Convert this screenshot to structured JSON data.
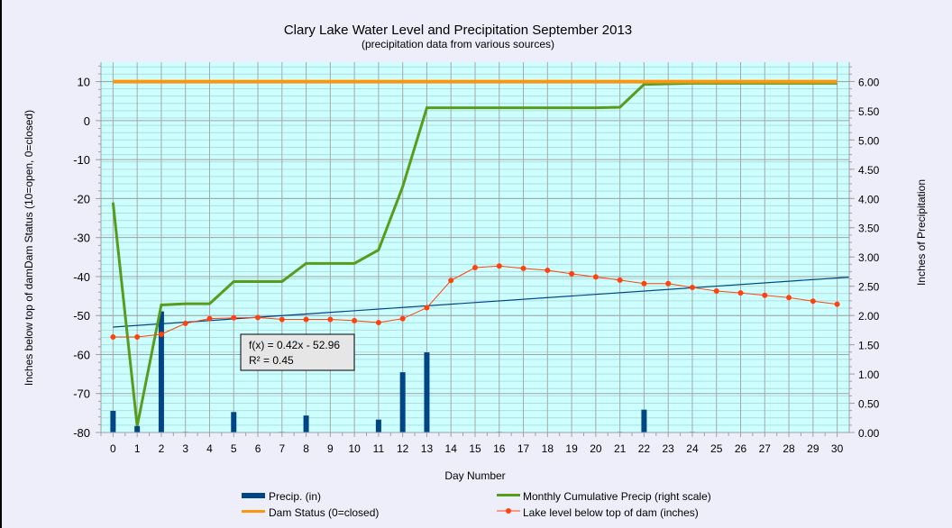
{
  "chart_data": {
    "type": "bar+line",
    "title": "Clary Lake Water Level and Precipitation September 2013",
    "subtitle": "(precipitation data from various sources)",
    "xlabel": "Day Number",
    "ylabel_left": "Inches below top of damDam Status (10=open, 0=closed)",
    "ylabel_right": "Inches of Precipitation",
    "x": [
      0,
      1,
      2,
      3,
      4,
      5,
      6,
      7,
      8,
      9,
      10,
      11,
      12,
      13,
      14,
      15,
      16,
      17,
      18,
      19,
      20,
      21,
      22,
      23,
      24,
      25,
      26,
      27,
      28,
      29,
      30
    ],
    "ylim_left": [
      -80,
      15
    ],
    "ylim_right": [
      0,
      6.33
    ],
    "left_ticks": [
      "10",
      "0",
      "-10",
      "-20",
      "-30",
      "-40",
      "-50",
      "-60",
      "-70",
      "-80"
    ],
    "right_ticks": [
      "6.00",
      "5.50",
      "5.00",
      "4.50",
      "4.00",
      "3.50",
      "3.00",
      "2.50",
      "2.00",
      "1.50",
      "1.00",
      "0.50",
      "0.00"
    ],
    "grid": true,
    "legend_position": "bottom",
    "series": [
      {
        "name": "Precip. (in)",
        "type": "bar",
        "axis": "right",
        "color": "#004586",
        "values": [
          0.37,
          0.11,
          2.07,
          0.01,
          0,
          0.35,
          0,
          0.01,
          0.29,
          0,
          0,
          0.22,
          1.03,
          1.37,
          0,
          0,
          0.01,
          0,
          0,
          0,
          0,
          0.01,
          0.39,
          0,
          0.01,
          0,
          0,
          0,
          0,
          0,
          0
        ]
      },
      {
        "name": "Monthly Cumulative Precip (right scale)",
        "type": "line",
        "axis": "right",
        "color": "#579d1c",
        "values": [
          3.93,
          0.11,
          2.18,
          2.2,
          2.2,
          2.58,
          2.58,
          2.58,
          2.89,
          2.89,
          2.89,
          3.12,
          4.2,
          5.55,
          5.55,
          5.55,
          5.55,
          5.55,
          5.55,
          5.55,
          5.55,
          5.56,
          5.95,
          5.96,
          5.97,
          5.97,
          5.97,
          5.97,
          5.97,
          5.97,
          5.97
        ]
      },
      {
        "name": "Dam Status (0=closed)",
        "type": "line",
        "axis": "left",
        "color": "#ff950e",
        "values": [
          10,
          10,
          10,
          10,
          10,
          10,
          10,
          10,
          10,
          10,
          10,
          10,
          10,
          10,
          10,
          10,
          10,
          10,
          10,
          10,
          10,
          10,
          10,
          10,
          10,
          10,
          10,
          10,
          10,
          10,
          10
        ]
      },
      {
        "name": "Lake level below top of dam (inches)",
        "type": "line-marker",
        "axis": "left",
        "color": "#ff420e",
        "values": [
          -55.5,
          -55.5,
          -54.8,
          -52,
          -50.8,
          -50.6,
          -50.5,
          -51,
          -51,
          -51,
          -51.3,
          -51.8,
          -50.8,
          -48,
          -41,
          -37.7,
          -37.3,
          -37.9,
          -38.4,
          -39.3,
          -40.1,
          -40.9,
          -41.8,
          -41.8,
          -42.8,
          -43.7,
          -44.2,
          -44.8,
          -45.4,
          -46.3,
          -47.1
        ]
      }
    ],
    "trendline": {
      "slope": 0.42,
      "intercept": -52.96,
      "color": "#004586",
      "equation": "f(x) = 0.42x - 52.96",
      "r2": "R² = 0.45"
    }
  }
}
